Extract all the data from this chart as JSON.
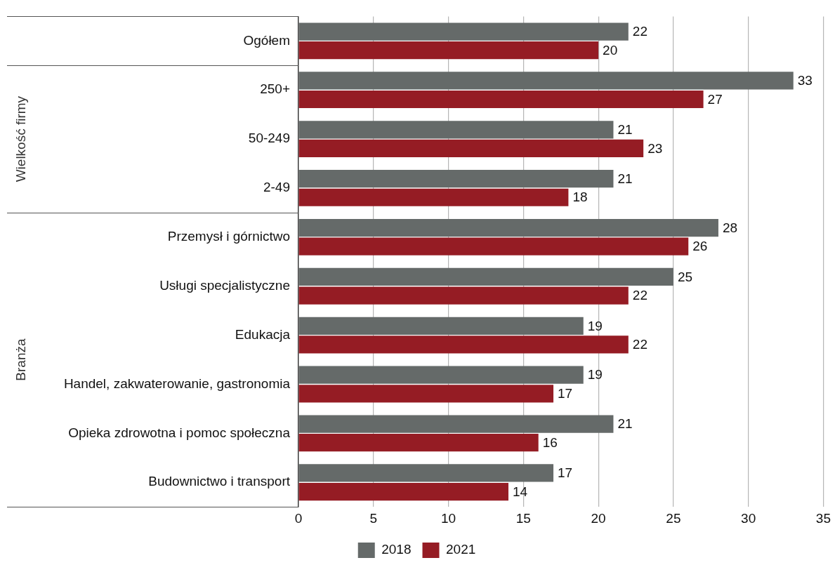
{
  "chart_data": {
    "type": "bar",
    "orientation": "horizontal",
    "categories": [
      "Ogółem",
      "250+",
      "50-249",
      "2-49",
      "Przemysł i górnictwo",
      "Usługi specjalistyczne",
      "Edukacja",
      "Handel, zakwaterowanie, gastronomia",
      "Opieka zdrowotna i pomoc społeczna",
      "Budownictwo i transport"
    ],
    "series": [
      {
        "name": "2018",
        "color": "#656a69",
        "values": [
          22,
          33,
          21,
          21,
          28,
          25,
          19,
          19,
          21,
          17
        ]
      },
      {
        "name": "2021",
        "color": "#951c24",
        "values": [
          20,
          27,
          23,
          18,
          26,
          22,
          22,
          17,
          16,
          14
        ]
      }
    ],
    "xlim": [
      0,
      35
    ],
    "xticks": [
      0,
      5,
      10,
      15,
      20,
      25,
      30,
      35
    ],
    "grid": "x",
    "legend": "bottom",
    "data_labels": true,
    "annotations": [
      "Wielkość firmy",
      "Branża"
    ]
  }
}
